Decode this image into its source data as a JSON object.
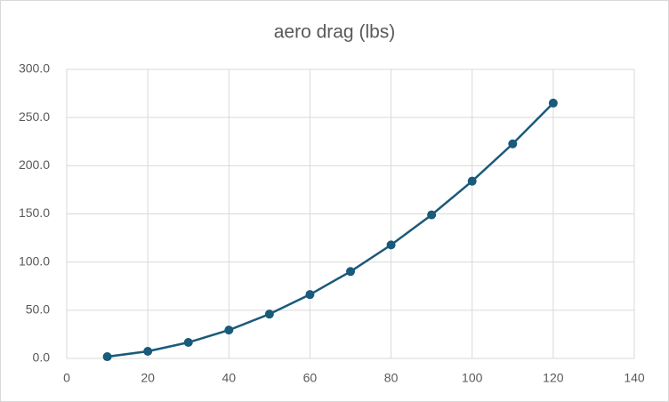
{
  "chart_data": {
    "type": "line",
    "title": "aero drag (lbs)",
    "x": [
      10,
      20,
      30,
      40,
      50,
      60,
      70,
      80,
      90,
      100,
      110,
      120
    ],
    "series": [
      {
        "color": "#1a5a7a",
        "values": [
          1.8,
          7.4,
          16.6,
          29.4,
          46.0,
          66.3,
          90.2,
          117.8,
          149.0,
          184.0,
          222.7,
          265.0
        ]
      }
    ],
    "xlim": [
      0,
      140
    ],
    "xticks": [
      0,
      20,
      40,
      60,
      80,
      100,
      120,
      140
    ],
    "ylim": [
      0,
      300
    ],
    "yticks": [
      {
        "value": 0,
        "label": "0.0"
      },
      {
        "value": 50,
        "label": "50.0"
      },
      {
        "value": 100,
        "label": "100.0"
      },
      {
        "value": 150,
        "label": "150.0"
      },
      {
        "value": 200,
        "label": "200.0"
      },
      {
        "value": 250,
        "label": "250.0"
      },
      {
        "value": 300,
        "label": "300.0"
      }
    ],
    "grid": true
  }
}
